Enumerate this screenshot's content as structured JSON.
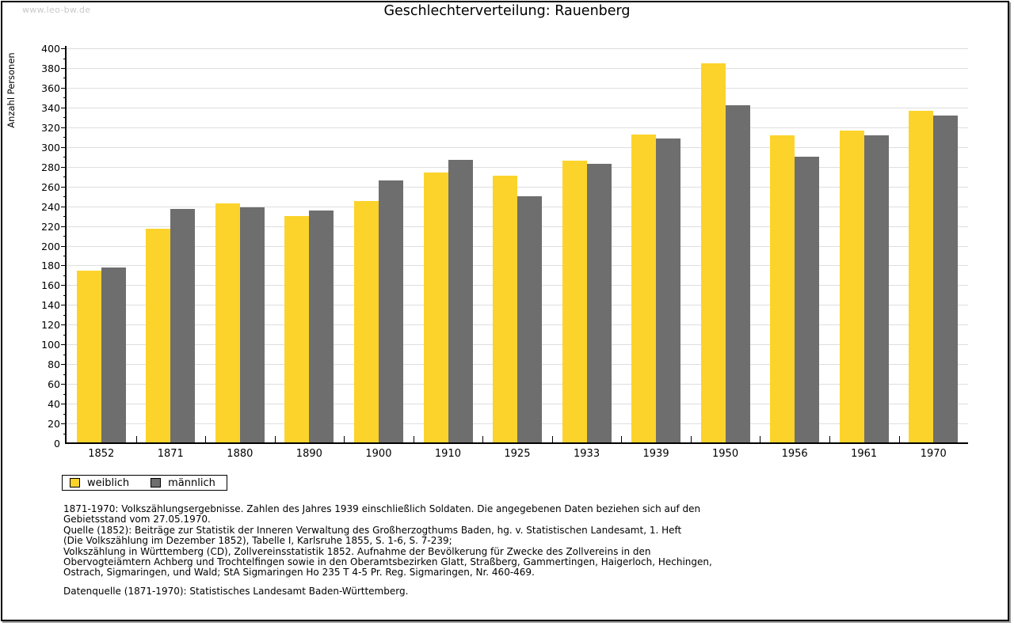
{
  "page": {
    "watermark": "www.leo-bw.de",
    "title": "Geschlechterverteilung: Rauenberg"
  },
  "chart_data": {
    "type": "bar",
    "title": "Geschlechterverteilung: Rauenberg",
    "xlabel": "",
    "ylabel": "Anzahl Personen",
    "ylim": [
      0,
      400
    ],
    "ytick_major_step": 20,
    "ytick_minor_step": 10,
    "grid": true,
    "legend_position": "bottom-left",
    "categories": [
      "1852",
      "1871",
      "1880",
      "1890",
      "1900",
      "1910",
      "1925",
      "1933",
      "1939",
      "1950",
      "1956",
      "1961",
      "1970"
    ],
    "series": [
      {
        "name": "weiblich",
        "color": "#FCD32B",
        "values": [
          175,
          217,
          243,
          230,
          245,
          274,
          271,
          286,
          313,
          385,
          312,
          317,
          337
        ]
      },
      {
        "name": "männlich",
        "color": "#6E6E6E",
        "values": [
          178,
          237,
          239,
          236,
          266,
          287,
          250,
          283,
          309,
          342,
          290,
          312,
          332
        ]
      }
    ]
  },
  "footnotes": {
    "lines": [
      "1871-1970: Volkszählungsergebnisse. Zahlen des Jahres 1939 einschließlich Soldaten. Die angegebenen Daten beziehen sich auf den",
      "Gebietsstand vom 27.05.1970.",
      "Quelle (1852): Beiträge zur Statistik der Inneren Verwaltung des Großherzogthums Baden, hg. v. Statistischen Landesamt, 1. Heft",
      "(Die Volkszählung im Dezember 1852), Tabelle I, Karlsruhe 1855, S. 1-6, S. 7-239;",
      "Volkszählung in Württemberg (CD), Zollvereinsstatistik 1852. Aufnahme der Bevölkerung für Zwecke des Zollvereins in den",
      "Obervogteiämtern Achberg und Trochtelfingen sowie in den Oberamtsbezirken Glatt, Straßberg, Gammertingen, Haigerloch, Hechingen,",
      "Ostrach, Sigmaringen, und Wald; StA Sigmaringen Ho 235 T 4-5 Pr. Reg. Sigmaringen, Nr. 460-469.",
      "Datenquelle (1871-1970): Statistisches Landesamt Baden-Württemberg."
    ]
  },
  "colors": {
    "axis": "#000000",
    "gridline": "#DEDEDE",
    "watermark": "#C9C9C9",
    "text": "#000000"
  }
}
